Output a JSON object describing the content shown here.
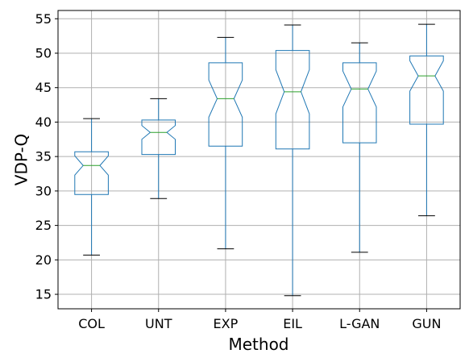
{
  "chart_data": {
    "type": "boxplot",
    "notched": true,
    "xlabel": "Method",
    "ylabel": "VDP-Q",
    "ylim": [
      12.9,
      56.2
    ],
    "yticks": [
      15,
      20,
      25,
      30,
      35,
      40,
      45,
      50,
      55
    ],
    "grid": true,
    "categories": [
      "COL",
      "UNT",
      "EXP",
      "EIL",
      "L-GAN",
      "GUN"
    ],
    "boxes": [
      {
        "label": "COL",
        "whislo": 20.7,
        "q1": 29.5,
        "med": 33.7,
        "q3": 35.7,
        "whishi": 40.5,
        "notch": [
          32.3,
          35.1
        ]
      },
      {
        "label": "UNT",
        "whislo": 28.9,
        "q1": 35.3,
        "med": 38.5,
        "q3": 40.3,
        "whishi": 43.4,
        "notch": [
          37.5,
          39.5
        ]
      },
      {
        "label": "EXP",
        "whislo": 21.6,
        "q1": 36.5,
        "med": 43.4,
        "q3": 48.6,
        "whishi": 52.3,
        "notch": [
          40.7,
          46.1
        ]
      },
      {
        "label": "EIL",
        "whislo": 14.8,
        "q1": 36.1,
        "med": 44.4,
        "q3": 50.4,
        "whishi": 54.1,
        "notch": [
          41.2,
          47.6
        ]
      },
      {
        "label": "L-GAN",
        "whislo": 21.1,
        "q1": 37.0,
        "med": 44.8,
        "q3": 48.6,
        "whishi": 51.5,
        "notch": [
          42.2,
          47.4
        ]
      },
      {
        "label": "GUN",
        "whislo": 26.4,
        "q1": 39.7,
        "med": 46.7,
        "q3": 49.6,
        "whishi": 54.2,
        "notch": [
          44.5,
          48.9
        ]
      }
    ],
    "colors": {
      "box": "#1f77b4",
      "median": "#2ca02c",
      "whisker_cap": "#000000",
      "grid": "#b0b0b0"
    }
  }
}
